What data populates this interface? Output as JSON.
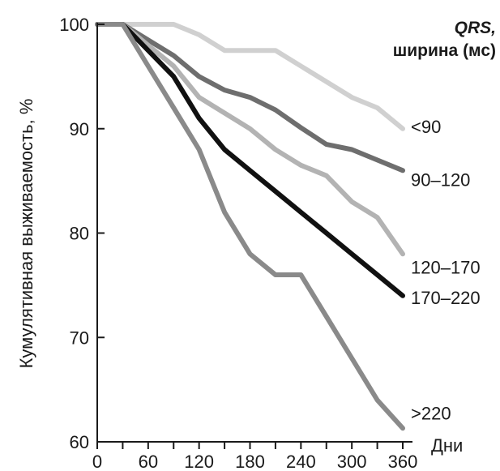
{
  "chart_data": {
    "type": "line",
    "ylabel": "Кумулятивная выживаемость, %",
    "xlabel": "Дни",
    "legend_title_line1": "QRS,",
    "legend_title_line2": "ширина (мс)",
    "xlim": [
      0,
      360
    ],
    "ylim": [
      60,
      100
    ],
    "x_ticks": [
      0,
      60,
      120,
      180,
      240,
      300,
      360
    ],
    "y_ticks": [
      60,
      70,
      80,
      90,
      100
    ],
    "x_tick_labels": [
      "0",
      "60",
      "120",
      "180",
      "240",
      "300",
      "360"
    ],
    "y_tick_labels": [
      "60",
      "70",
      "80",
      "90",
      "100"
    ],
    "series": [
      {
        "name": "<90",
        "color": "#d0d0d0",
        "x": [
          0,
          30,
          60,
          90,
          120,
          150,
          180,
          210,
          240,
          270,
          300,
          330,
          360
        ],
        "y": [
          100,
          100,
          100,
          100,
          99,
          97.5,
          97.5,
          97.5,
          96,
          94.5,
          93,
          92,
          90
        ]
      },
      {
        "name": "90–120",
        "color": "#6e6e6e",
        "x": [
          0,
          30,
          60,
          90,
          120,
          150,
          180,
          210,
          240,
          270,
          300,
          330,
          360
        ],
        "y": [
          100,
          100,
          98.5,
          97,
          95,
          93.7,
          93,
          91.8,
          90.1,
          88.5,
          88,
          87,
          86
        ]
      },
      {
        "name": "120–170",
        "color": "#b3b3b3",
        "x": [
          0,
          30,
          60,
          90,
          120,
          150,
          180,
          210,
          240,
          270,
          300,
          330,
          360
        ],
        "y": [
          100,
          100,
          98,
          96,
          93,
          91.5,
          90,
          88,
          86.5,
          85.5,
          83,
          81.5,
          78
        ]
      },
      {
        "name": "170–220",
        "color": "#111111",
        "x": [
          0,
          30,
          60,
          90,
          120,
          150,
          180,
          210,
          240,
          270,
          300,
          330,
          360
        ],
        "y": [
          100,
          100,
          97.5,
          95,
          91,
          88,
          86,
          84,
          82,
          80,
          78,
          76,
          74
        ]
      },
      {
        "name": ">220",
        "color": "#8a8a8a",
        "x": [
          0,
          30,
          60,
          90,
          120,
          150,
          180,
          210,
          240,
          270,
          300,
          330,
          360
        ],
        "y": [
          100,
          100,
          96,
          92,
          88,
          82,
          78,
          76,
          76,
          72,
          68,
          64,
          61.3
        ]
      }
    ]
  }
}
